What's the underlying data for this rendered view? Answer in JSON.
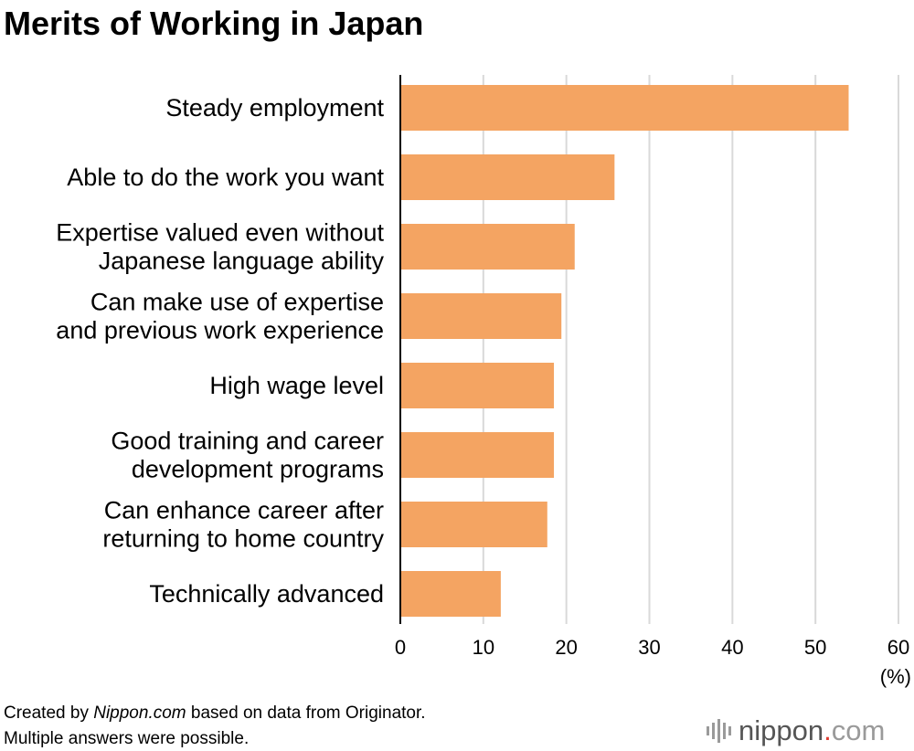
{
  "chart_data": {
    "type": "bar",
    "orientation": "horizontal",
    "title": "Merits of Working in Japan",
    "categories": [
      [
        "Steady employment"
      ],
      [
        "Able to do the work you want"
      ],
      [
        "Expertise valued even without",
        "Japanese language ability"
      ],
      [
        "Can make use of expertise",
        "and previous work experience"
      ],
      [
        "High wage level"
      ],
      [
        "Good training and career",
        "development programs"
      ],
      [
        "Can enhance career after",
        "returning to home country"
      ],
      [
        "Technically advanced"
      ]
    ],
    "values": [
      54.0,
      25.8,
      21.0,
      19.4,
      18.5,
      18.5,
      17.7,
      12.1
    ],
    "xlim": [
      0,
      60
    ],
    "xticks": [
      0,
      10,
      20,
      30,
      40,
      50,
      60
    ],
    "unit_label": "(%)",
    "grid": true,
    "bar_color": "#f4a462",
    "grid_color": "#d9d9d9"
  },
  "footer": {
    "line1_prefix": "Created by ",
    "line1_source": "Nippon.com",
    "line1_suffix": " based on data from Originator.",
    "line2": "Multiple answers were possible."
  },
  "logo": {
    "name": "nippon",
    "dot": ".",
    "tld": "com",
    "accent": "#e03c31",
    "gray": "#9a9a9a"
  }
}
